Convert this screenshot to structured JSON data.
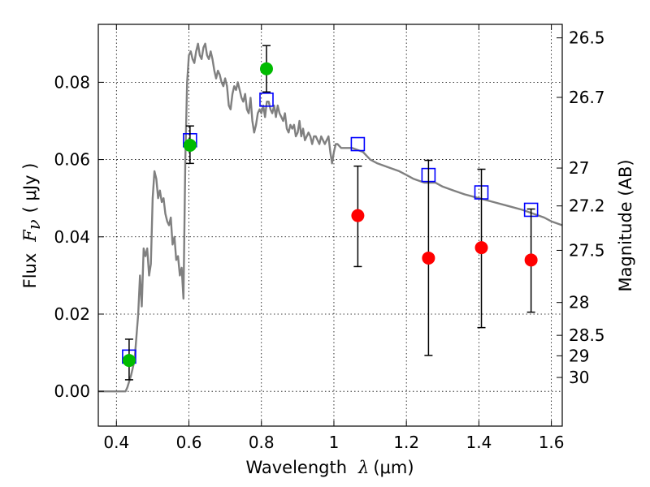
{
  "chart_data": {
    "type": "scatter",
    "xlabel": {
      "prefix": "Wavelength",
      "symbol": "λ",
      "unit": "(μm)"
    },
    "ylabel": {
      "prefix": "Flux",
      "symbol": "F",
      "subscript": "ν",
      "unit": "( μJy )"
    },
    "ylabel_right": "Magnitude (AB)",
    "xlim": [
      0.35,
      1.63
    ],
    "ylim": [
      -0.009,
      0.095
    ],
    "x_ticks": [
      0.4,
      0.6,
      0.8,
      1.0,
      1.2,
      1.4,
      1.6
    ],
    "x_tick_labels": [
      "0.4",
      "0.6",
      "0.8",
      "1",
      "1.2",
      "1.4",
      "1.6"
    ],
    "y_ticks": [
      0.0,
      0.02,
      0.04,
      0.06,
      0.08
    ],
    "y_tick_labels": [
      "0.00",
      "0.02",
      "0.04",
      "0.06",
      "0.08"
    ],
    "right_ticks": [
      {
        "label": "26.5",
        "flux": 0.0915
      },
      {
        "label": "26.7",
        "flux": 0.0761
      },
      {
        "label": "27",
        "flux": 0.0578
      },
      {
        "label": "27.2",
        "flux": 0.048
      },
      {
        "label": "27.5",
        "flux": 0.0365
      },
      {
        "label": "28",
        "flux": 0.023
      },
      {
        "label": "28.5",
        "flux": 0.0145
      },
      {
        "label": "29",
        "flux": 0.0092
      },
      {
        "label": "30",
        "flux": 0.0036
      }
    ],
    "grid": true,
    "colors": {
      "model_line": "#808080",
      "model_points": "#0000ff",
      "detections": "#00bb00",
      "upper_points": "#ff0000",
      "errorbar": "#000000"
    },
    "model_spectrum": {
      "x": [
        0.35,
        0.36,
        0.37,
        0.38,
        0.39,
        0.4,
        0.41,
        0.42,
        0.425,
        0.43,
        0.44,
        0.45,
        0.46,
        0.465,
        0.47,
        0.475,
        0.48,
        0.485,
        0.49,
        0.495,
        0.5,
        0.505,
        0.51,
        0.515,
        0.52,
        0.525,
        0.53,
        0.535,
        0.54,
        0.545,
        0.55,
        0.555,
        0.56,
        0.565,
        0.57,
        0.575,
        0.58,
        0.585,
        0.59,
        0.595,
        0.6,
        0.605,
        0.61,
        0.615,
        0.62,
        0.625,
        0.63,
        0.635,
        0.64,
        0.645,
        0.65,
        0.655,
        0.66,
        0.665,
        0.67,
        0.675,
        0.68,
        0.685,
        0.69,
        0.695,
        0.7,
        0.705,
        0.71,
        0.715,
        0.72,
        0.725,
        0.73,
        0.735,
        0.74,
        0.745,
        0.75,
        0.755,
        0.76,
        0.765,
        0.77,
        0.775,
        0.78,
        0.785,
        0.79,
        0.795,
        0.8,
        0.805,
        0.81,
        0.815,
        0.82,
        0.825,
        0.83,
        0.835,
        0.84,
        0.845,
        0.85,
        0.855,
        0.86,
        0.865,
        0.87,
        0.875,
        0.88,
        0.885,
        0.89,
        0.895,
        0.9,
        0.905,
        0.91,
        0.915,
        0.92,
        0.925,
        0.93,
        0.935,
        0.94,
        0.945,
        0.95,
        0.955,
        0.96,
        0.965,
        0.97,
        0.975,
        0.98,
        0.985,
        0.99,
        0.995,
        1.0,
        1.005,
        1.01,
        1.02,
        1.05,
        1.08,
        1.1,
        1.12,
        1.15,
        1.18,
        1.2,
        1.22,
        1.25,
        1.28,
        1.3,
        1.33,
        1.36,
        1.4,
        1.44,
        1.48,
        1.52,
        1.55,
        1.58,
        1.6,
        1.63
      ],
      "y": [
        0.0,
        0.0,
        0.0,
        0.0,
        0.0,
        0.0,
        0.0,
        0.0,
        0.0,
        0.001,
        0.004,
        0.008,
        0.02,
        0.03,
        0.022,
        0.037,
        0.035,
        0.037,
        0.03,
        0.033,
        0.05,
        0.057,
        0.055,
        0.05,
        0.052,
        0.049,
        0.05,
        0.046,
        0.044,
        0.043,
        0.045,
        0.038,
        0.04,
        0.034,
        0.035,
        0.03,
        0.032,
        0.024,
        0.06,
        0.08,
        0.087,
        0.088,
        0.086,
        0.085,
        0.088,
        0.09,
        0.087,
        0.086,
        0.089,
        0.09,
        0.087,
        0.086,
        0.088,
        0.086,
        0.083,
        0.081,
        0.083,
        0.082,
        0.08,
        0.079,
        0.081,
        0.079,
        0.074,
        0.073,
        0.077,
        0.079,
        0.078,
        0.08,
        0.078,
        0.076,
        0.075,
        0.077,
        0.073,
        0.072,
        0.076,
        0.07,
        0.067,
        0.069,
        0.072,
        0.073,
        0.072,
        0.074,
        0.071,
        0.075,
        0.075,
        0.073,
        0.072,
        0.074,
        0.071,
        0.074,
        0.072,
        0.071,
        0.07,
        0.072,
        0.068,
        0.067,
        0.069,
        0.068,
        0.069,
        0.066,
        0.067,
        0.07,
        0.066,
        0.068,
        0.065,
        0.066,
        0.067,
        0.066,
        0.064,
        0.066,
        0.066,
        0.065,
        0.064,
        0.066,
        0.065,
        0.064,
        0.065,
        0.066,
        0.062,
        0.059,
        0.062,
        0.064,
        0.064,
        0.063,
        0.063,
        0.062,
        0.06,
        0.059,
        0.058,
        0.057,
        0.056,
        0.055,
        0.054,
        0.054,
        0.053,
        0.052,
        0.051,
        0.05,
        0.049,
        0.048,
        0.047,
        0.046,
        0.045,
        0.044,
        0.043
      ]
    },
    "series": [
      {
        "marker": "open-square",
        "color_key": "model_points",
        "points": [
          {
            "x": 0.435,
            "y": 0.009
          },
          {
            "x": 0.603,
            "y": 0.065
          },
          {
            "x": 0.814,
            "y": 0.0755
          },
          {
            "x": 1.066,
            "y": 0.064
          },
          {
            "x": 1.261,
            "y": 0.056
          },
          {
            "x": 1.407,
            "y": 0.0515
          },
          {
            "x": 1.544,
            "y": 0.047
          }
        ]
      },
      {
        "marker": "filled-circle",
        "color_key": "detections",
        "points": [
          {
            "x": 0.435,
            "y": 0.008,
            "ylo": 0.003,
            "yhi": 0.0135
          },
          {
            "x": 0.603,
            "y": 0.0637,
            "ylo": 0.059,
            "yhi": 0.0687
          },
          {
            "x": 0.814,
            "y": 0.0835,
            "ylo": 0.0775,
            "yhi": 0.0895
          }
        ]
      },
      {
        "marker": "filled-circle",
        "color_key": "upper_points",
        "points": [
          {
            "x": 1.066,
            "y": 0.0455,
            "ylo": 0.0323,
            "yhi": 0.0583
          },
          {
            "x": 1.261,
            "y": 0.0345,
            "ylo": 0.0093,
            "yhi": 0.0598
          },
          {
            "x": 1.407,
            "y": 0.0372,
            "ylo": 0.0165,
            "yhi": 0.0575
          },
          {
            "x": 1.544,
            "y": 0.034,
            "ylo": 0.0205,
            "yhi": 0.0472
          }
        ]
      }
    ]
  }
}
